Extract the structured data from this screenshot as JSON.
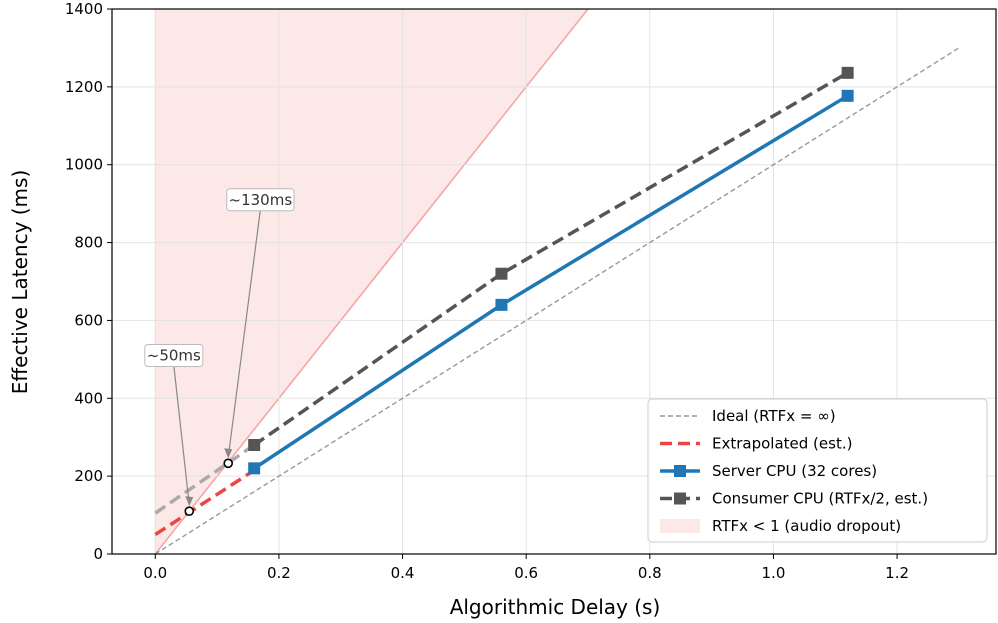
{
  "chart_data": {
    "type": "line",
    "title": "",
    "xlabel": "Algorithmic Delay (s)",
    "ylabel": "Effective Latency (ms)",
    "xlim": [
      -0.07,
      1.36
    ],
    "ylim": [
      0,
      1400
    ],
    "x_ticks": [
      0.0,
      0.2,
      0.4,
      0.6,
      0.8,
      1.0,
      1.2
    ],
    "x_tick_labels": [
      "0.0",
      "0.2",
      "0.4",
      "0.6",
      "0.8",
      "1.0",
      "1.2"
    ],
    "y_ticks": [
      0,
      200,
      400,
      600,
      800,
      1000,
      1200,
      1400
    ],
    "y_tick_labels": [
      "0",
      "200",
      "400",
      "600",
      "800",
      "1000",
      "1200",
      "1400"
    ],
    "grid": true,
    "legend_position": "bottom-right",
    "series": [
      {
        "name": "Ideal (RTFx = ∞)",
        "style": "dashed-thin",
        "color": "#999999",
        "x": [
          0.0,
          1.3
        ],
        "y": [
          0,
          1300
        ]
      },
      {
        "name": "Extrapolated (est.)",
        "style": "dashed",
        "color": "#ef4444",
        "x": [
          0.0,
          0.16
        ],
        "y": [
          50,
          215
        ]
      },
      {
        "name": "Server CPU (32 cores)",
        "style": "solid-square",
        "color": "#1f77b4",
        "x": [
          0.16,
          0.56,
          1.12
        ],
        "y": [
          220,
          640,
          1177
        ]
      },
      {
        "name": "Consumer CPU (RTFx/2, est.)",
        "style": "dashed-square",
        "color": "#555555",
        "x": [
          0.16,
          0.56,
          1.12
        ],
        "y": [
          280,
          720,
          1236
        ]
      },
      {
        "name": "RTFx < 1 (audio dropout)",
        "style": "region",
        "color": "#fde8e8",
        "x": [
          0.0,
          0.7
        ],
        "y": [
          0,
          1400
        ]
      }
    ],
    "extrapolated_consumer": {
      "color": "#aaaaaa",
      "x": [
        0.0,
        0.16
      ],
      "y": [
        105,
        280
      ]
    },
    "dropout_boundary": {
      "color": "#f4a6a6",
      "x": [
        0.0,
        0.7
      ],
      "y": [
        0,
        1400
      ]
    },
    "annotations": [
      {
        "text": "~50ms",
        "point": [
          0.055,
          110
        ],
        "label_at": [
          0.03,
          510
        ]
      },
      {
        "text": "~130ms",
        "point": [
          0.118,
          233
        ],
        "label_at": [
          0.17,
          910
        ]
      }
    ]
  }
}
